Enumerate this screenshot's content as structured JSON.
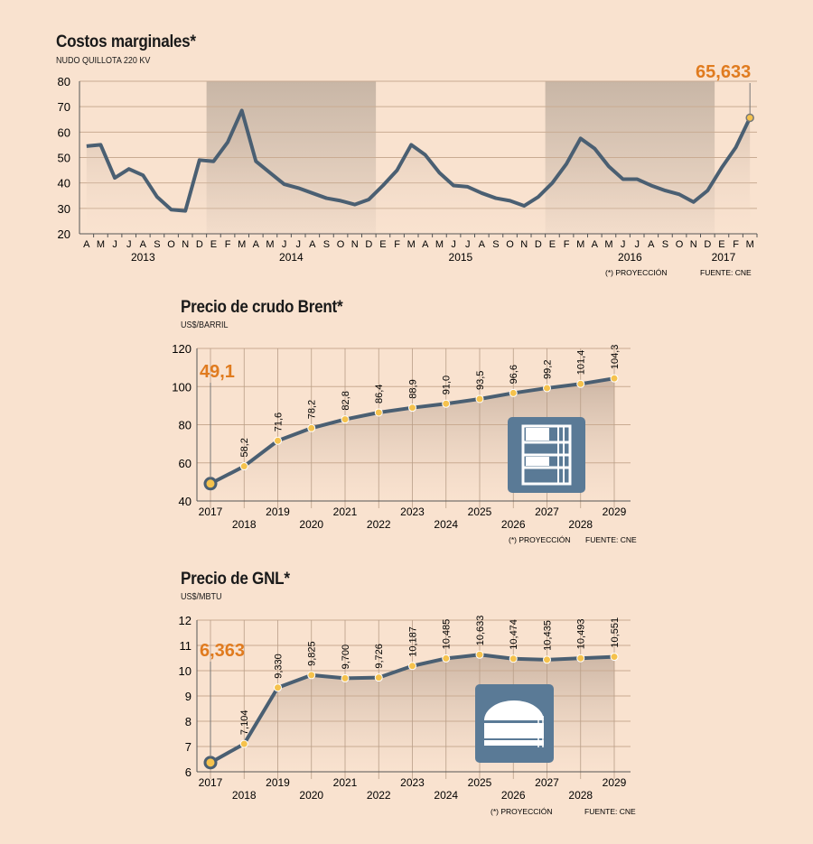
{
  "charts": {
    "marginal": {
      "title": "Costos marginales*",
      "subtitle": "NUDO QUILLOTA 220 KV",
      "callout": "65,633",
      "note": "(*) PROYECCIÓN",
      "source": "FUENTE: CNE"
    },
    "brent": {
      "title": "Precio de crudo Brent*",
      "subtitle": "US$/BARRIL",
      "callout": "49,1",
      "note": "(*) PROYECCIÓN",
      "source": "FUENTE: CNE"
    },
    "gnl": {
      "title": "Precio de GNL*",
      "subtitle": "US$/MBTU",
      "callout": "6,363",
      "note": "(*) PROYECCIÓN",
      "source": "FUENTE: CNE"
    }
  },
  "colors": {
    "background": "#f9e2cf",
    "line": "#4a5f72",
    "accent": "#e07b1f",
    "shade": "#c9b7a8",
    "marker": "#f5c24d",
    "icon_bg": "#5a7a96"
  },
  "icons": {
    "brent": "oil-barrels-icon",
    "gnl": "lng-tank-icon"
  },
  "chart_data": [
    {
      "type": "line",
      "title": "Costos marginales*",
      "subtitle": "NUDO QUILLOTA 220 KV",
      "ylim": [
        20,
        80
      ],
      "yticks": [
        "20",
        "30",
        "40",
        "50",
        "60",
        "70",
        "80"
      ],
      "x": [
        "A",
        "M",
        "J",
        "J",
        "A",
        "S",
        "O",
        "N",
        "D",
        "E",
        "F",
        "M",
        "A",
        "M",
        "J",
        "J",
        "A",
        "S",
        "O",
        "N",
        "D",
        "E",
        "F",
        "M",
        "A",
        "M",
        "J",
        "J",
        "A",
        "S",
        "O",
        "N",
        "D",
        "E",
        "F",
        "M",
        "A",
        "M",
        "J",
        "J",
        "A",
        "S",
        "O",
        "N",
        "D",
        "E",
        "F",
        "M"
      ],
      "years": [
        {
          "label": "2013",
          "start": 0,
          "end": 8
        },
        {
          "label": "2014",
          "start": 9,
          "end": 20
        },
        {
          "label": "2015",
          "start": 21,
          "end": 32
        },
        {
          "label": "2016",
          "start": 33,
          "end": 44
        },
        {
          "label": "2017",
          "start": 45,
          "end": 47
        }
      ],
      "values": [
        54.5,
        55,
        42,
        45.5,
        43,
        34.5,
        29.5,
        29,
        49,
        48.5,
        56,
        68.5,
        48.5,
        44,
        39.5,
        38,
        36,
        34,
        33,
        31.5,
        33.5,
        39,
        45,
        55,
        51,
        44,
        39,
        38.5,
        36,
        34,
        33,
        31,
        34.5,
        40,
        47.5,
        57.5,
        53.5,
        46.5,
        41.5,
        41.5,
        39,
        37,
        35.5,
        32.5,
        37,
        46,
        54,
        65.633
      ],
      "callout": "65,633",
      "grid": true
    },
    {
      "type": "line",
      "title": "Precio de crudo Brent*",
      "subtitle": "US$/BARRIL",
      "ylim": [
        40,
        120
      ],
      "yticks": [
        "40",
        "60",
        "80",
        "100",
        "120"
      ],
      "x": [
        "2017",
        "2018",
        "2019",
        "2020",
        "2021",
        "2022",
        "2023",
        "2024",
        "2025",
        "2026",
        "2027",
        "2028",
        "2029"
      ],
      "values": [
        49.1,
        58.2,
        71.6,
        78.2,
        82.8,
        86.4,
        88.9,
        91.0,
        93.5,
        96.6,
        99.2,
        101.4,
        104.3
      ],
      "labels": [
        "49,1",
        "58,2",
        "71,6",
        "78,2",
        "82,8",
        "86,4",
        "88,9",
        "91,0",
        "93,5",
        "96,6",
        "99,2",
        "101,4",
        "104,3"
      ],
      "callout": "49,1",
      "grid": true
    },
    {
      "type": "line",
      "title": "Precio de GNL*",
      "subtitle": "US$/MBTU",
      "ylim": [
        6,
        12
      ],
      "yticks": [
        "6",
        "7",
        "8",
        "9",
        "10",
        "11",
        "12"
      ],
      "x": [
        "2017",
        "2018",
        "2019",
        "2020",
        "2021",
        "2022",
        "2023",
        "2024",
        "2025",
        "2026",
        "2027",
        "2028",
        "2029"
      ],
      "values": [
        6.363,
        7.104,
        9.33,
        9.825,
        9.7,
        9.726,
        10.187,
        10.485,
        10.633,
        10.474,
        10.435,
        10.493,
        10.551
      ],
      "labels": [
        "6,363",
        "7,104",
        "9,330",
        "9,825",
        "9,700",
        "9,726",
        "10,187",
        "10,485",
        "10,633",
        "10,474",
        "10,435",
        "10,493",
        "10,551"
      ],
      "callout": "6,363",
      "grid": true
    }
  ]
}
